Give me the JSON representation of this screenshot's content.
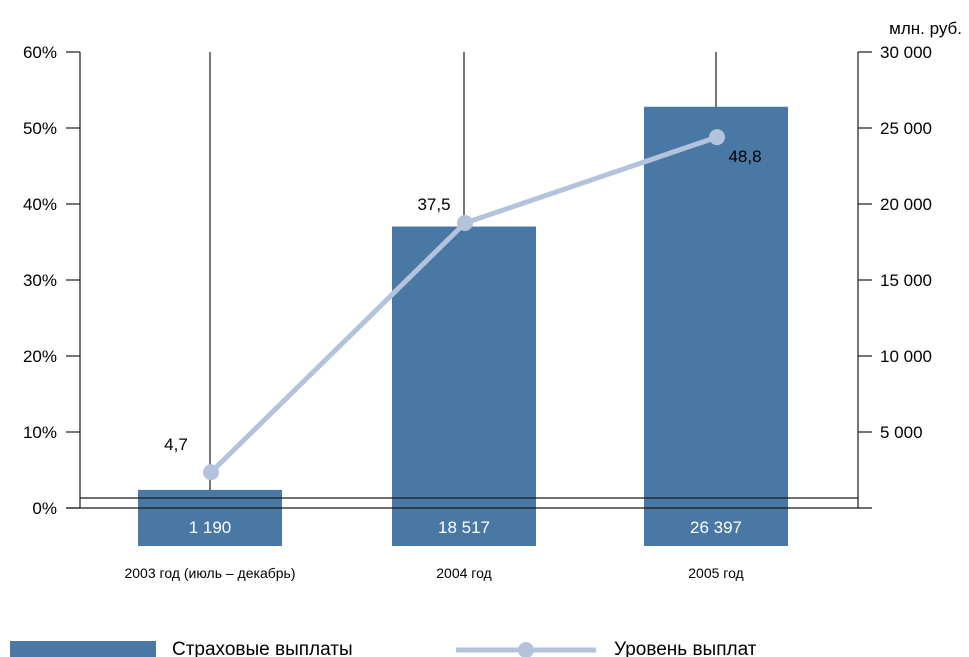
{
  "chart_data": {
    "type": "bar",
    "categories": [
      "2003 год (июль – декабрь)",
      "2004 год",
      "2005 год"
    ],
    "unit_label": "млн. руб.",
    "series": [
      {
        "name": "Страховые выплаты",
        "kind": "bar",
        "axis": "right",
        "values": [
          1190,
          18517,
          26397
        ],
        "labels": [
          "1 190",
          "18 517",
          "26 397"
        ],
        "color": "#4a78a5"
      },
      {
        "name": "Уровень выплат",
        "kind": "line",
        "axis": "left",
        "values": [
          4.7,
          37.5,
          48.8
        ],
        "labels": [
          "4,7",
          "37,5",
          "48,8"
        ],
        "color": "#b3c3dc"
      }
    ],
    "left_axis": {
      "ylim": [
        0,
        60
      ],
      "ticks": [
        "0%",
        "10%",
        "20%",
        "30%",
        "40%",
        "50%",
        "60%"
      ]
    },
    "right_axis": {
      "ylim": [
        0,
        30000
      ],
      "ticks": [
        "5 000",
        "10 000",
        "15 000",
        "20 000",
        "25 000",
        "30 000"
      ]
    },
    "legend": {
      "placement": "bottom",
      "items": [
        "Страховые выплаты",
        "Уровень выплат"
      ]
    },
    "grid": "vertical lines at categories"
  }
}
